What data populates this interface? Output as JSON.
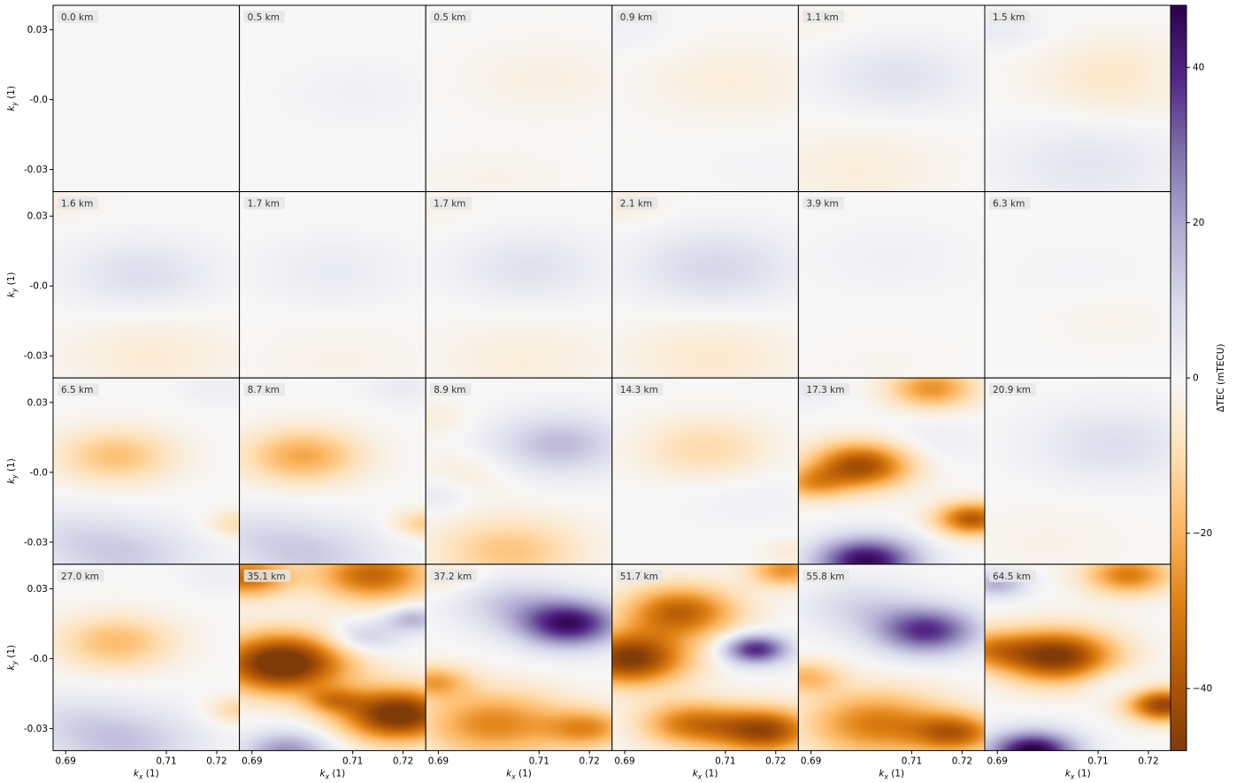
{
  "chart_data": {
    "type": "heatmap",
    "grid": {
      "rows": 4,
      "cols": 6
    },
    "panels": [
      {
        "label": "0.0 km",
        "blobs": []
      },
      {
        "label": "0.5 km",
        "blobs": [
          [
            0.711,
            0.003,
            0.01,
            2
          ]
        ]
      },
      {
        "label": "0.5 km",
        "blobs": [
          [
            0.711,
            0.009,
            0.011,
            -3
          ],
          [
            0.701,
            -0.035,
            0.01,
            -2
          ]
        ]
      },
      {
        "label": "0.9 km",
        "blobs": [
          [
            0.711,
            0.008,
            0.012,
            -4
          ],
          [
            0.69,
            0.03,
            0.008,
            2
          ],
          [
            0.718,
            -0.028,
            0.01,
            1
          ]
        ]
      },
      {
        "label": "1.1 km",
        "blobs": [
          [
            0.707,
            0.01,
            0.01,
            7
          ],
          [
            0.699,
            -0.03,
            0.012,
            -4
          ],
          [
            0.688,
            0.034,
            0.007,
            -2
          ]
        ]
      },
      {
        "label": "1.5 km",
        "blobs": [
          [
            0.714,
            0.01,
            0.011,
            -7
          ],
          [
            0.708,
            -0.028,
            0.012,
            6
          ],
          [
            0.691,
            0.03,
            0.006,
            4
          ],
          [
            0.724,
            0.01,
            0.006,
            2
          ]
        ]
      },
      {
        "label": "1.6 km",
        "blobs": [
          [
            0.705,
            0.005,
            0.01,
            8
          ],
          [
            0.707,
            -0.03,
            0.012,
            -5
          ],
          [
            0.688,
            0.036,
            0.006,
            -3
          ]
        ]
      },
      {
        "label": "1.7 km",
        "blobs": [
          [
            0.706,
            0.006,
            0.01,
            4
          ],
          [
            0.707,
            -0.032,
            0.012,
            -2
          ]
        ]
      },
      {
        "label": "1.7 km",
        "blobs": [
          [
            0.708,
            0.008,
            0.01,
            7
          ],
          [
            0.707,
            -0.032,
            0.012,
            -4
          ],
          [
            0.69,
            0.034,
            0.006,
            -2
          ]
        ]
      },
      {
        "label": "2.1 km",
        "blobs": [
          [
            0.708,
            0.008,
            0.011,
            10
          ],
          [
            0.707,
            -0.031,
            0.012,
            -6
          ],
          [
            0.689,
            0.035,
            0.006,
            -4
          ]
        ]
      },
      {
        "label": "3.9 km",
        "blobs": [
          [
            0.706,
            0.012,
            0.011,
            2
          ],
          [
            0.704,
            -0.033,
            0.01,
            -1
          ]
        ]
      },
      {
        "label": "6.3 km",
        "blobs": [
          [
            0.706,
            0.005,
            0.011,
            1
          ],
          [
            0.712,
            -0.015,
            0.008,
            -2
          ]
        ]
      },
      {
        "label": "6.5 km",
        "blobs": [
          [
            0.7,
            0.007,
            0.008,
            -17
          ],
          [
            0.702,
            -0.036,
            0.01,
            12
          ],
          [
            0.724,
            -0.022,
            0.004,
            -10
          ],
          [
            0.69,
            -0.026,
            0.008,
            6
          ],
          [
            0.72,
            0.036,
            0.005,
            3
          ]
        ]
      },
      {
        "label": "8.7 km",
        "blobs": [
          [
            0.7,
            0.007,
            0.008,
            -22
          ],
          [
            0.702,
            -0.036,
            0.01,
            12
          ],
          [
            0.724,
            -0.022,
            0.004,
            -14
          ],
          [
            0.69,
            -0.026,
            0.008,
            6
          ],
          [
            0.72,
            0.036,
            0.005,
            4
          ]
        ]
      },
      {
        "label": "8.9 km",
        "blobs": [
          [
            0.714,
            0.012,
            0.009,
            16
          ],
          [
            0.704,
            -0.034,
            0.01,
            -16
          ],
          [
            0.689,
            0.023,
            0.005,
            -4
          ],
          [
            0.689,
            -0.01,
            0.005,
            5
          ],
          [
            0.696,
            0.0,
            0.007,
            -4
          ]
        ]
      },
      {
        "label": "14.3 km",
        "blobs": [
          [
            0.706,
            0.01,
            0.009,
            -11
          ],
          [
            0.723,
            -0.034,
            0.004,
            -5
          ],
          [
            0.714,
            -0.01,
            0.01,
            2
          ]
        ]
      },
      {
        "label": "17.3 km",
        "blobs": [
          [
            0.7,
            0.003,
            0.007,
            -42
          ],
          [
            0.701,
            -0.038,
            0.007,
            46
          ],
          [
            0.722,
            -0.02,
            0.005,
            -38
          ],
          [
            0.714,
            0.036,
            0.006,
            -26
          ],
          [
            0.69,
            -0.005,
            0.005,
            -20
          ],
          [
            0.712,
            0.012,
            0.008,
            4
          ],
          [
            0.689,
            0.036,
            0.005,
            4
          ]
        ]
      },
      {
        "label": "20.9 km",
        "blobs": [
          [
            0.713,
            0.012,
            0.011,
            8
          ],
          [
            0.7,
            -0.03,
            0.012,
            -2
          ]
        ]
      },
      {
        "label": "27.0 km",
        "blobs": [
          [
            0.7,
            0.007,
            0.008,
            -18
          ],
          [
            0.702,
            -0.036,
            0.01,
            14
          ],
          [
            0.724,
            -0.022,
            0.004,
            -12
          ],
          [
            0.69,
            -0.026,
            0.008,
            6
          ],
          [
            0.72,
            0.036,
            0.005,
            3
          ]
        ]
      },
      {
        "label": "35.1 km",
        "blobs": [
          [
            0.696,
            -0.002,
            0.009,
            -55
          ],
          [
            0.719,
            -0.024,
            0.008,
            -52
          ],
          [
            0.714,
            0.036,
            0.008,
            -35
          ],
          [
            0.689,
            0.035,
            0.006,
            -34
          ],
          [
            0.697,
            -0.04,
            0.006,
            24
          ],
          [
            0.712,
            0.009,
            0.005,
            14
          ],
          [
            0.722,
            0.017,
            0.004,
            18
          ],
          [
            0.706,
            -0.018,
            0.004,
            -18
          ]
        ]
      },
      {
        "label": "37.2 km",
        "blobs": [
          [
            0.716,
            0.015,
            0.007,
            44
          ],
          [
            0.704,
            0.024,
            0.008,
            12
          ],
          [
            0.701,
            -0.028,
            0.01,
            -28
          ],
          [
            0.72,
            -0.03,
            0.006,
            -24
          ],
          [
            0.689,
            -0.01,
            0.005,
            -22
          ],
          [
            0.692,
            0.035,
            0.006,
            -6
          ]
        ]
      },
      {
        "label": "51.7 km",
        "blobs": [
          [
            0.691,
            0.0,
            0.008,
            -48
          ],
          [
            0.701,
            0.02,
            0.008,
            -36
          ],
          [
            0.718,
            -0.031,
            0.007,
            -42
          ],
          [
            0.703,
            -0.028,
            0.007,
            -30
          ],
          [
            0.722,
            0.038,
            0.005,
            -26
          ],
          [
            0.716,
            0.004,
            0.0045,
            40
          ]
        ]
      },
      {
        "label": "55.8 km",
        "blobs": [
          [
            0.713,
            0.012,
            0.007,
            38
          ],
          [
            0.7,
            0.022,
            0.008,
            10
          ],
          [
            0.703,
            -0.028,
            0.01,
            -30
          ],
          [
            0.719,
            -0.032,
            0.006,
            -32
          ],
          [
            0.689,
            -0.008,
            0.005,
            -18
          ]
        ]
      },
      {
        "label": "64.5 km",
        "blobs": [
          [
            0.702,
            0.001,
            0.008,
            -48
          ],
          [
            0.723,
            -0.02,
            0.005,
            -44
          ],
          [
            0.716,
            0.036,
            0.006,
            -30
          ],
          [
            0.697,
            -0.04,
            0.006,
            50
          ],
          [
            0.69,
            0.032,
            0.004,
            18
          ],
          [
            0.688,
            0.004,
            0.006,
            -22
          ],
          [
            0.713,
            -0.01,
            0.005,
            6
          ]
        ]
      }
    ],
    "xlabel": "k_x (1)",
    "ylabel": "k_y (1)",
    "xticks": [
      0.69,
      0.71,
      0.72
    ],
    "xtick_labels": [
      "0.69",
      "0.71",
      "0.72"
    ],
    "yticks": [
      0.03,
      0.0,
      -0.03
    ],
    "ytick_labels": [
      "0.03",
      "-0.0",
      "-0.03"
    ],
    "xlim": [
      0.6875,
      0.7245
    ],
    "ylim": [
      -0.0395,
      0.0405
    ],
    "colorbar": {
      "label": "ΔTEC (mTECU)",
      "range": [
        -48,
        48
      ],
      "ticks": [
        40,
        20,
        0,
        -20,
        -40
      ],
      "tick_labels": [
        "40",
        "20",
        "0",
        "−20",
        "−40"
      ],
      "colormap": "PuOr"
    }
  }
}
